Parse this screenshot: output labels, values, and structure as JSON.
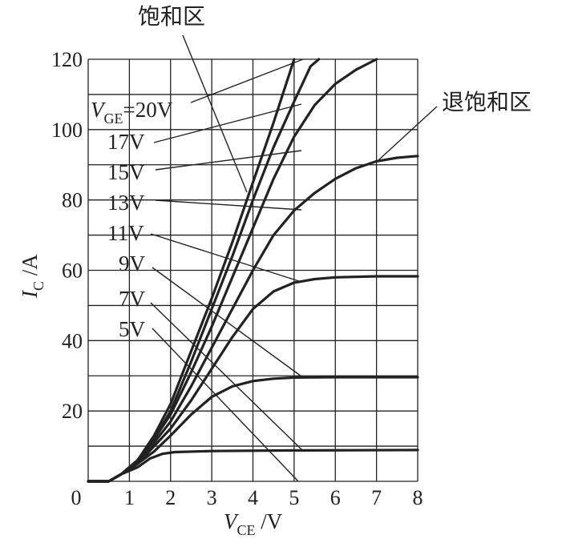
{
  "chart_data": {
    "type": "line",
    "xlabel": {
      "symbol": "V",
      "sub": "CE",
      "unit": " /V"
    },
    "ylabel": {
      "symbol": "I",
      "sub": "C",
      "unit": " /A"
    },
    "xlim": [
      0,
      8
    ],
    "ylim": [
      0,
      120
    ],
    "x_ticks": [
      0,
      1,
      2,
      3,
      4,
      5,
      6,
      7,
      8
    ],
    "y_ticks": [
      0,
      20,
      40,
      60,
      80,
      100,
      120
    ],
    "grid": true,
    "annotations": {
      "saturation_region": "饱和区",
      "desaturation_region": "退饱和区"
    },
    "series": [
      {
        "name": "V_GE=20V",
        "label": {
          "symbol": "V",
          "sub": "GE",
          "text": "=20V"
        },
        "points": [
          [
            0,
            0
          ],
          [
            0.5,
            0
          ],
          [
            0.8,
            2
          ],
          [
            1.2,
            6
          ],
          [
            1.6,
            13
          ],
          [
            2.0,
            22
          ],
          [
            2.5,
            37
          ],
          [
            3.0,
            52
          ],
          [
            3.5,
            68
          ],
          [
            4.0,
            85
          ],
          [
            4.5,
            102
          ],
          [
            5.0,
            120
          ]
        ]
      },
      {
        "name": "17V",
        "label": {
          "text": "17V"
        },
        "points": [
          [
            0,
            0
          ],
          [
            0.5,
            0
          ],
          [
            0.8,
            2
          ],
          [
            1.2,
            6
          ],
          [
            1.6,
            12
          ],
          [
            2.0,
            20
          ],
          [
            2.5,
            34
          ],
          [
            3.0,
            49
          ],
          [
            3.5,
            64
          ],
          [
            4.0,
            80
          ],
          [
            4.5,
            95
          ],
          [
            5.0,
            108
          ],
          [
            5.4,
            118
          ],
          [
            5.6,
            120
          ]
        ]
      },
      {
        "name": "15V",
        "label": {
          "text": "15V"
        },
        "points": [
          [
            0,
            0
          ],
          [
            0.5,
            0
          ],
          [
            0.8,
            2
          ],
          [
            1.2,
            6
          ],
          [
            1.6,
            12
          ],
          [
            2.0,
            19
          ],
          [
            2.5,
            31
          ],
          [
            3.0,
            44
          ],
          [
            3.5,
            58
          ],
          [
            4.0,
            72
          ],
          [
            4.5,
            86
          ],
          [
            5.0,
            98
          ],
          [
            5.5,
            107
          ],
          [
            6.0,
            113
          ],
          [
            6.5,
            117
          ],
          [
            7.0,
            120
          ]
        ]
      },
      {
        "name": "13V",
        "label": {
          "text": "13V"
        },
        "points": [
          [
            0,
            0
          ],
          [
            0.5,
            0
          ],
          [
            0.8,
            2
          ],
          [
            1.2,
            5
          ],
          [
            1.6,
            11
          ],
          [
            2.0,
            17
          ],
          [
            2.5,
            27
          ],
          [
            3.0,
            38
          ],
          [
            3.5,
            49
          ],
          [
            4.0,
            60
          ],
          [
            4.5,
            70
          ],
          [
            5.0,
            77
          ],
          [
            5.5,
            82
          ],
          [
            6.0,
            86
          ],
          [
            6.5,
            89
          ],
          [
            7.0,
            91
          ],
          [
            7.5,
            92
          ],
          [
            8.0,
            92.5
          ]
        ]
      },
      {
        "name": "11V",
        "label": {
          "text": "11V"
        },
        "points": [
          [
            0,
            0
          ],
          [
            0.5,
            0
          ],
          [
            0.8,
            2
          ],
          [
            1.2,
            5
          ],
          [
            1.6,
            10
          ],
          [
            2.0,
            15
          ],
          [
            2.5,
            23
          ],
          [
            3.0,
            32
          ],
          [
            3.5,
            41
          ],
          [
            4.0,
            49
          ],
          [
            4.5,
            54
          ],
          [
            5.0,
            56.5
          ],
          [
            5.5,
            57.5
          ],
          [
            6.0,
            58
          ],
          [
            7.0,
            58.3
          ],
          [
            8.0,
            58.3
          ]
        ]
      },
      {
        "name": "9V",
        "label": {
          "text": "9V"
        },
        "points": [
          [
            0,
            0
          ],
          [
            0.5,
            0
          ],
          [
            0.8,
            2
          ],
          [
            1.2,
            5
          ],
          [
            1.6,
            8.5
          ],
          [
            2.0,
            13
          ],
          [
            2.5,
            19
          ],
          [
            3.0,
            24
          ],
          [
            3.5,
            27
          ],
          [
            4.0,
            28.5
          ],
          [
            4.5,
            29.2
          ],
          [
            5.0,
            29.5
          ],
          [
            6.0,
            29.6
          ],
          [
            8.0,
            29.6
          ]
        ]
      },
      {
        "name": "7V",
        "label": {
          "text": "7V"
        },
        "points": [
          [
            0,
            0
          ],
          [
            0.5,
            0
          ],
          [
            0.8,
            2
          ],
          [
            1.2,
            4
          ],
          [
            1.5,
            6.5
          ],
          [
            1.8,
            7.8
          ],
          [
            2.1,
            8.3
          ],
          [
            3.0,
            8.6
          ],
          [
            5.0,
            8.8
          ],
          [
            8.0,
            8.9
          ]
        ]
      },
      {
        "name": "5V",
        "label": {
          "text": "5V"
        },
        "points": []
      }
    ]
  }
}
